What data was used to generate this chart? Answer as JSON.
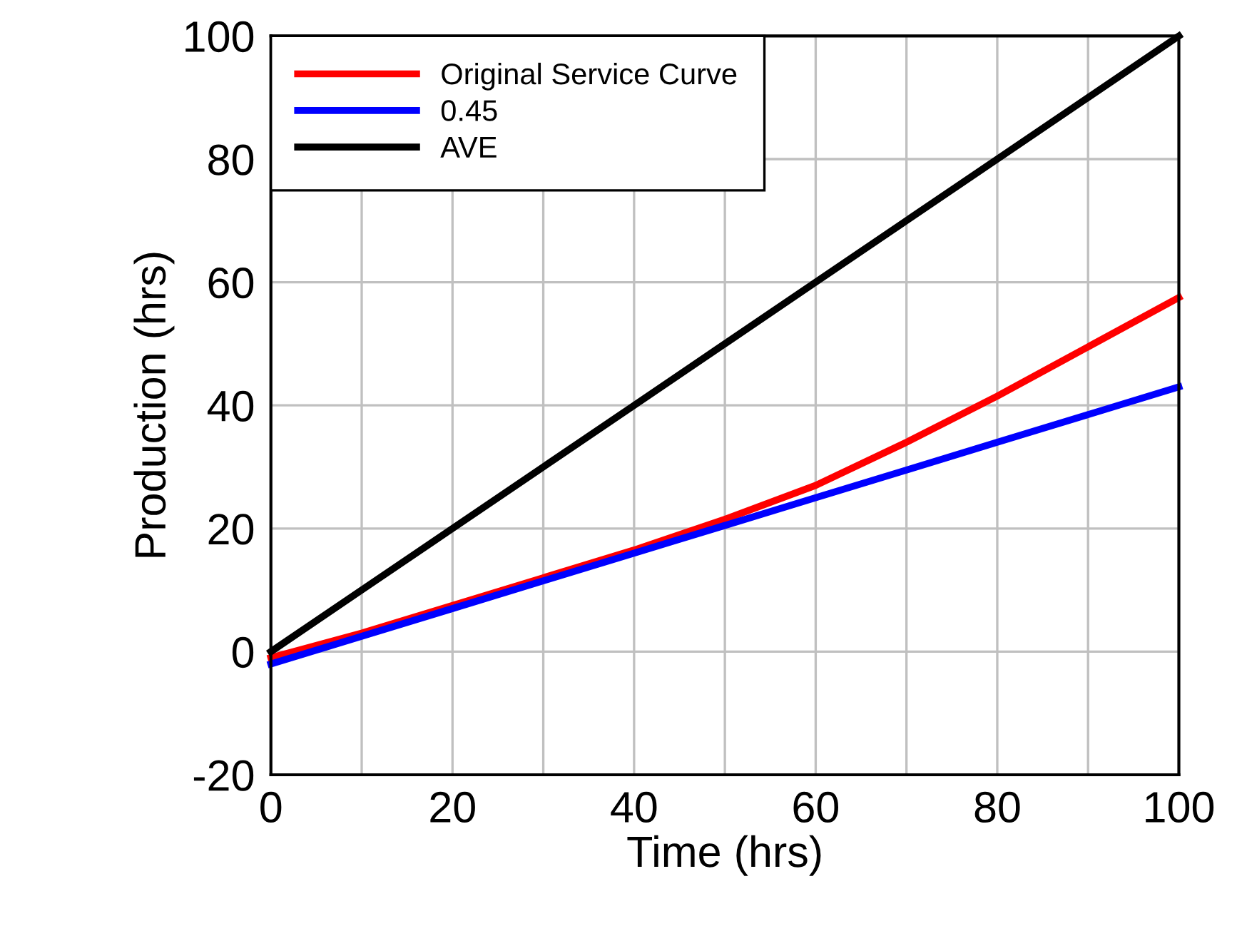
{
  "chart_data": {
    "type": "line",
    "xlabel": "Time (hrs)",
    "ylabel": "Production (hrs)",
    "x": [
      0,
      10,
      20,
      30,
      40,
      50,
      60,
      70,
      80,
      90,
      100
    ],
    "series": [
      {
        "name": "Original Service Curve",
        "color": "#ff0000",
        "values": [
          -1,
          3,
          7.5,
          12,
          16.5,
          21.5,
          27,
          34,
          41.5,
          49.5,
          57.5
        ]
      },
      {
        "name": "0.45",
        "color": "#0000ff",
        "values": [
          -2,
          2.5,
          7,
          11.5,
          16,
          20.5,
          25,
          29.5,
          34,
          38.5,
          43
        ]
      },
      {
        "name": "AVE",
        "color": "#000000",
        "values": [
          0,
          10,
          20,
          30,
          40,
          50,
          60,
          70,
          80,
          90,
          100
        ]
      }
    ],
    "xlim": [
      0,
      100
    ],
    "ylim": [
      -20,
      100
    ],
    "xticks": [
      0,
      {
        "value": 10,
        "label": null
      },
      20,
      {
        "value": 30,
        "label": null
      },
      40,
      {
        "value": 50,
        "label": null
      },
      60,
      {
        "value": 70,
        "label": null
      },
      80,
      {
        "value": 90,
        "label": null
      },
      100
    ],
    "yticks": [
      -20,
      0,
      20,
      40,
      60,
      80,
      100
    ],
    "grid": true,
    "legend": "top left",
    "marker": "none",
    "line_style": "solid"
  }
}
